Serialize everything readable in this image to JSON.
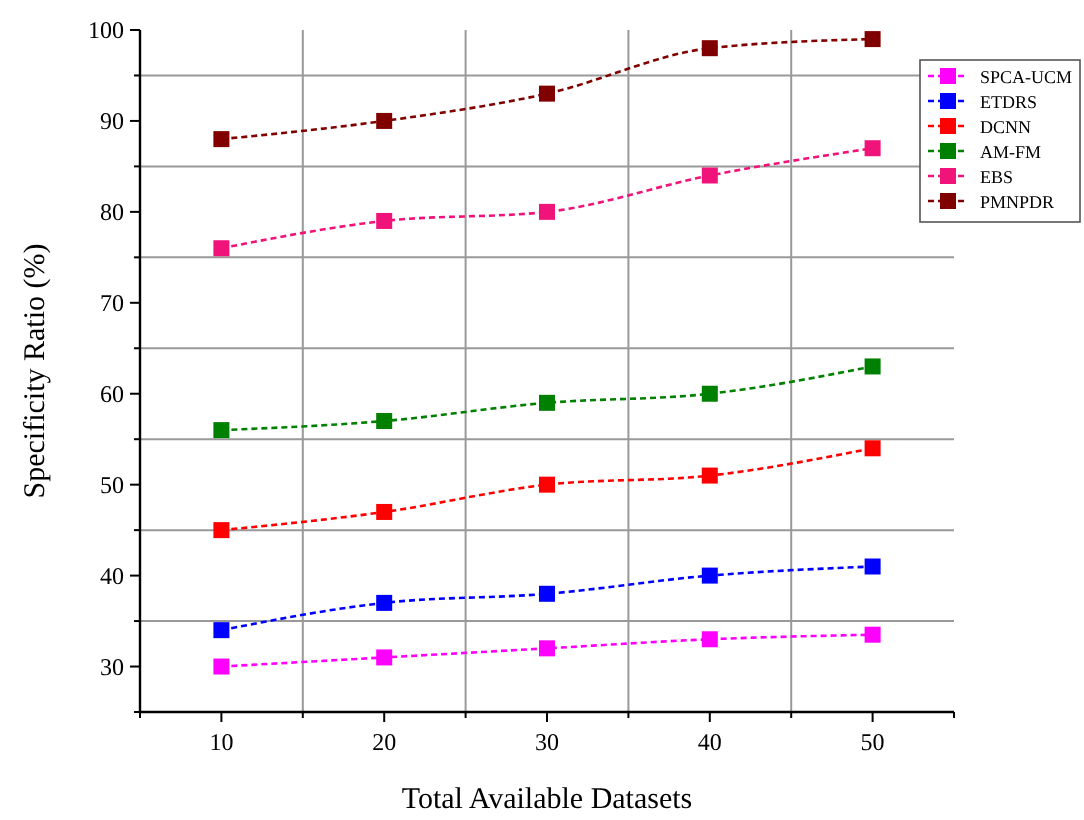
{
  "chart_data": {
    "type": "line",
    "xlabel": "Total Available Datasets",
    "ylabel": "Specificity Ratio (%)",
    "x": [
      10,
      20,
      30,
      40,
      50
    ],
    "xlim": [
      5,
      55
    ],
    "xticks": [
      {
        "value": 5,
        "label": null
      },
      10,
      {
        "value": 15,
        "label": null
      },
      20,
      {
        "value": 25,
        "label": null
      },
      30,
      {
        "value": 35,
        "label": null
      },
      40,
      {
        "value": 45,
        "label": null
      },
      50,
      {
        "value": 55,
        "label": null
      }
    ],
    "ylim": [
      25,
      100
    ],
    "yticks": [
      {
        "value": 25,
        "label": null
      },
      30,
      {
        "value": 35,
        "label": null
      },
      40,
      {
        "value": 45,
        "label": null
      },
      50,
      {
        "value": 55,
        "label": null
      },
      60,
      {
        "value": 65,
        "label": null
      },
      70,
      {
        "value": 75,
        "label": null
      },
      80,
      {
        "value": 85,
        "label": null
      },
      90,
      {
        "value": 95,
        "label": null
      },
      100
    ],
    "grid": true,
    "legend": "top right",
    "marker": "square",
    "line_style": "dashed",
    "series": [
      {
        "name": "SPCA-UCM",
        "color": "#ff00ff",
        "values": [
          30,
          31,
          32,
          33,
          33.5
        ]
      },
      {
        "name": "ETDRS",
        "color": "#0000ff",
        "values": [
          34,
          37,
          38,
          40,
          41
        ]
      },
      {
        "name": "DCNN",
        "color": "#ff0000",
        "values": [
          45,
          47,
          50,
          51,
          54
        ]
      },
      {
        "name": "AM-FM",
        "color": "#008000",
        "values": [
          56,
          57,
          59,
          60,
          63
        ]
      },
      {
        "name": "EBS",
        "color": "#f0147a",
        "values": [
          76,
          79,
          80,
          84,
          87
        ]
      },
      {
        "name": "PMNPDR",
        "color": "#800000",
        "values": [
          88,
          90,
          93,
          98,
          99
        ]
      }
    ]
  }
}
